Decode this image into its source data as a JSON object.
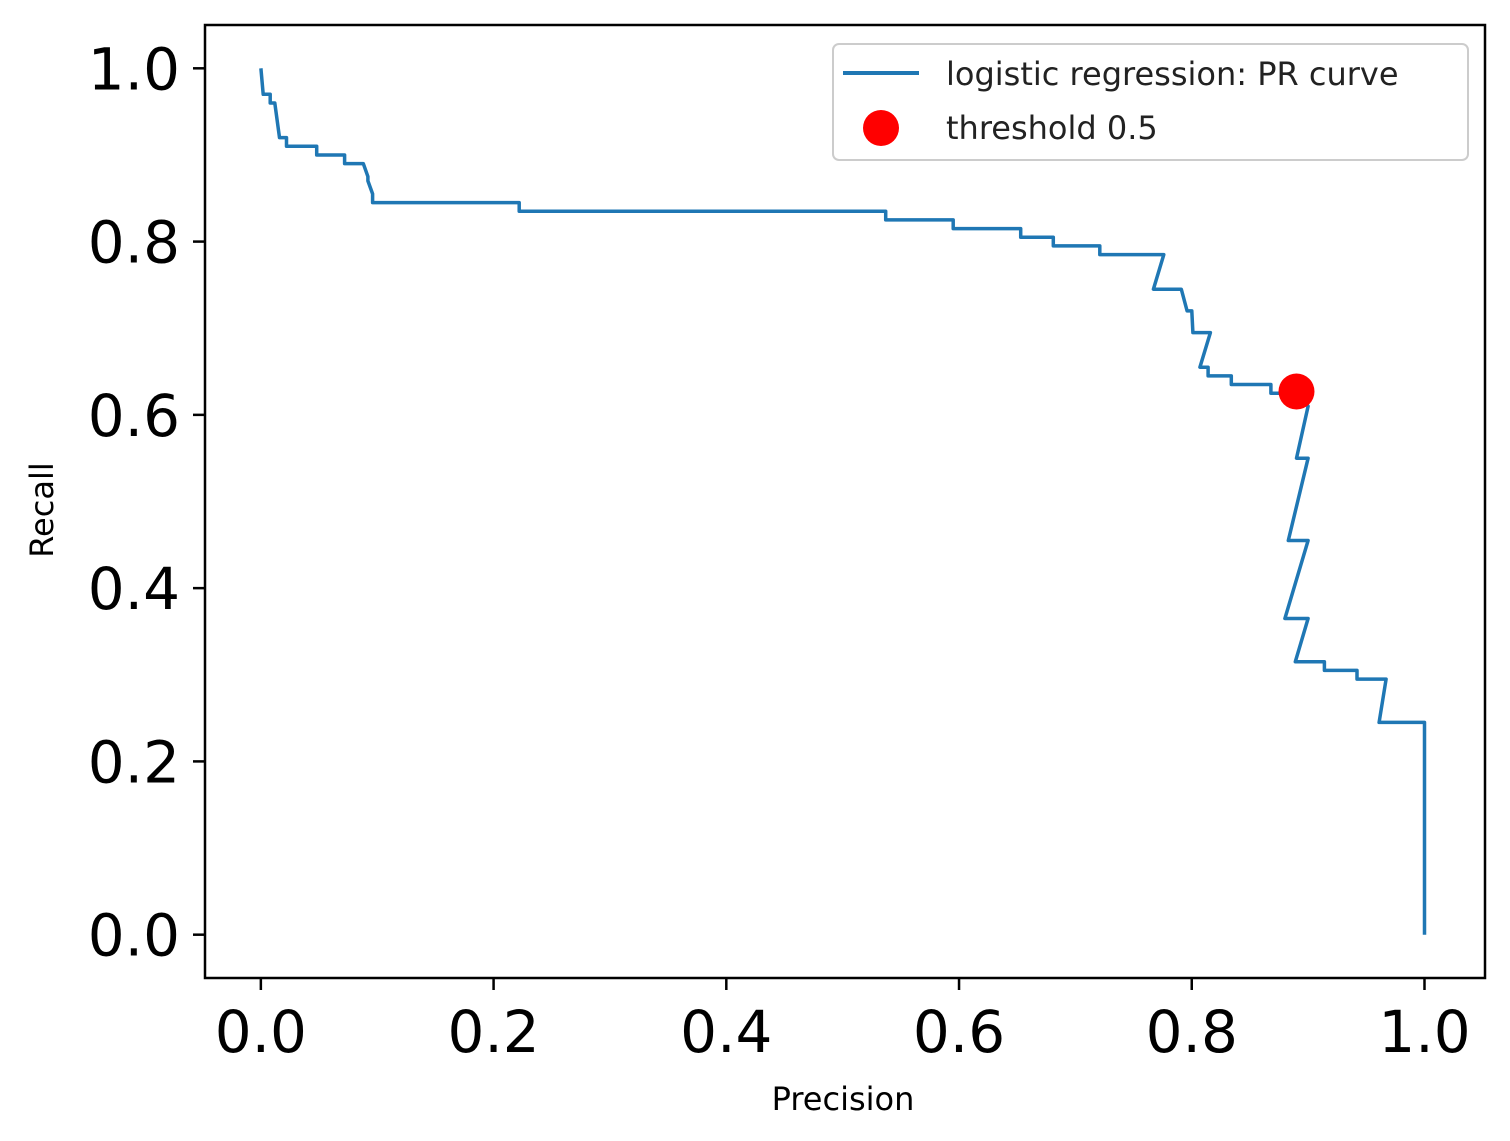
{
  "chart_data": {
    "type": "line",
    "title": "",
    "xlabel": "Precision",
    "ylabel": "Recall",
    "xlim": [
      -0.048,
      1.052
    ],
    "ylim": [
      -0.05,
      1.05
    ],
    "xticks": [
      0.0,
      0.2,
      0.4,
      0.6,
      0.8,
      1.0
    ],
    "yticks": [
      0.0,
      0.2,
      0.4,
      0.6,
      0.8,
      1.0
    ],
    "xtick_labels": [
      "0.0",
      "0.2",
      "0.4",
      "0.6",
      "0.8",
      "1.0"
    ],
    "ytick_labels": [
      "0.0",
      "0.2",
      "0.4",
      "0.6",
      "0.8",
      "1.0"
    ],
    "grid": false,
    "legend_position": "top-right",
    "series": [
      {
        "name": "logistic regression: PR curve",
        "color": "#1f77b4",
        "style": "line",
        "points": [
          [
            0.0,
            1.0
          ],
          [
            0.002,
            0.97
          ],
          [
            0.008,
            0.97
          ],
          [
            0.008,
            0.96
          ],
          [
            0.012,
            0.96
          ],
          [
            0.016,
            0.92
          ],
          [
            0.022,
            0.92
          ],
          [
            0.022,
            0.91
          ],
          [
            0.048,
            0.91
          ],
          [
            0.048,
            0.9
          ],
          [
            0.072,
            0.9
          ],
          [
            0.072,
            0.89
          ],
          [
            0.088,
            0.89
          ],
          [
            0.092,
            0.875
          ],
          [
            0.092,
            0.87
          ],
          [
            0.096,
            0.855
          ],
          [
            0.096,
            0.845
          ],
          [
            0.222,
            0.845
          ],
          [
            0.222,
            0.835
          ],
          [
            0.537,
            0.835
          ],
          [
            0.537,
            0.825
          ],
          [
            0.595,
            0.825
          ],
          [
            0.595,
            0.815
          ],
          [
            0.653,
            0.815
          ],
          [
            0.653,
            0.805
          ],
          [
            0.681,
            0.805
          ],
          [
            0.681,
            0.795
          ],
          [
            0.721,
            0.795
          ],
          [
            0.721,
            0.785
          ],
          [
            0.776,
            0.785
          ],
          [
            0.767,
            0.745
          ],
          [
            0.791,
            0.745
          ],
          [
            0.796,
            0.72
          ],
          [
            0.8,
            0.72
          ],
          [
            0.801,
            0.695
          ],
          [
            0.816,
            0.695
          ],
          [
            0.807,
            0.655
          ],
          [
            0.814,
            0.655
          ],
          [
            0.814,
            0.645
          ],
          [
            0.834,
            0.645
          ],
          [
            0.834,
            0.635
          ],
          [
            0.868,
            0.635
          ],
          [
            0.868,
            0.625
          ],
          [
            0.89,
            0.625
          ],
          [
            0.9,
            0.61
          ],
          [
            0.89,
            0.55
          ],
          [
            0.9,
            0.55
          ],
          [
            0.883,
            0.455
          ],
          [
            0.9,
            0.455
          ],
          [
            0.88,
            0.365
          ],
          [
            0.9,
            0.365
          ],
          [
            0.889,
            0.315
          ],
          [
            0.914,
            0.315
          ],
          [
            0.914,
            0.305
          ],
          [
            0.942,
            0.305
          ],
          [
            0.942,
            0.295
          ],
          [
            0.967,
            0.295
          ],
          [
            0.961,
            0.245
          ],
          [
            1.0,
            0.245
          ],
          [
            1.0,
            0.0
          ]
        ]
      },
      {
        "name": "threshold 0.5",
        "color": "#ff0000",
        "style": "marker",
        "points": [
          [
            0.89,
            0.627
          ]
        ]
      }
    ]
  }
}
